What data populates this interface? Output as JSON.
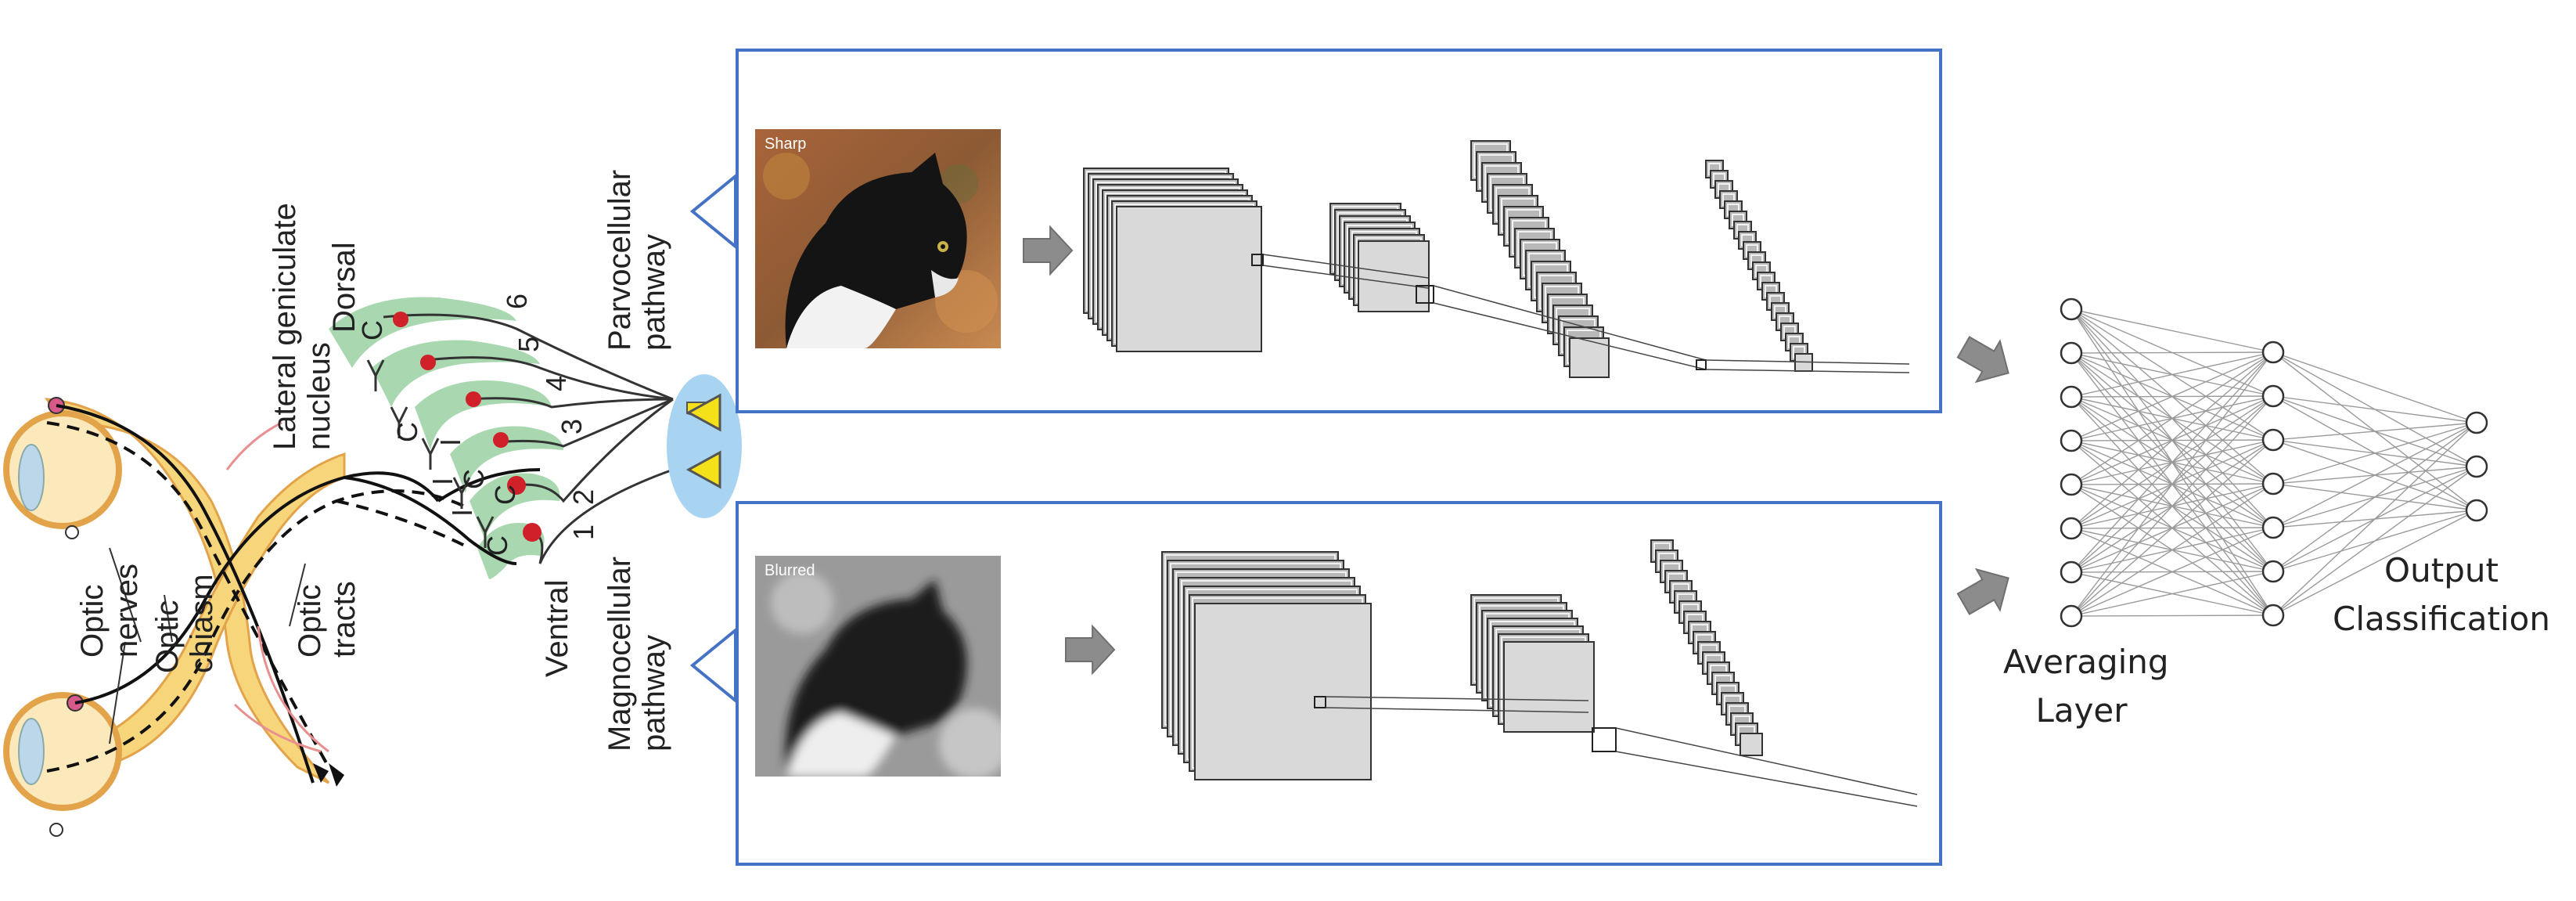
{
  "anatomy": {
    "lgn_label": "Lateral geniculate\nnucleus",
    "dorsal_label": "Dorsal",
    "ventral_label": "Ventral",
    "optic_nerves_label": "Optic\nnerves",
    "optic_chiasm_label": "Optic\nchiasm",
    "optic_tracts_label": "Optic\ntracts",
    "layer_numbers": [
      "6",
      "5",
      "4",
      "3",
      "2",
      "1"
    ],
    "layer_letters": [
      "C",
      "C",
      "I",
      "I",
      "C",
      "C",
      "I",
      "C"
    ],
    "parvocellular_label": "Parvocellular\npathway",
    "magnocellular_label": "Magnocellular\npathway"
  },
  "pathways": {
    "sharp_tag": "Sharp",
    "blurred_tag": "Blurred"
  },
  "network": {
    "averaging_label": "Averaging\nLayer",
    "output_label": "Output\nClassification",
    "layer_sizes": [
      8,
      7,
      3
    ]
  },
  "colors": {
    "box_border": "#4472c4",
    "lgn_green": "#a9d8b0",
    "tract_yellow": "#f7d57a",
    "neuron_red": "#d0202a",
    "triangle_yellow": "#f5e11a",
    "ellipse_blue": "#a8d4f2",
    "feature_map": "#c8c8c8",
    "arrow_gray": "#8c8c8c"
  }
}
